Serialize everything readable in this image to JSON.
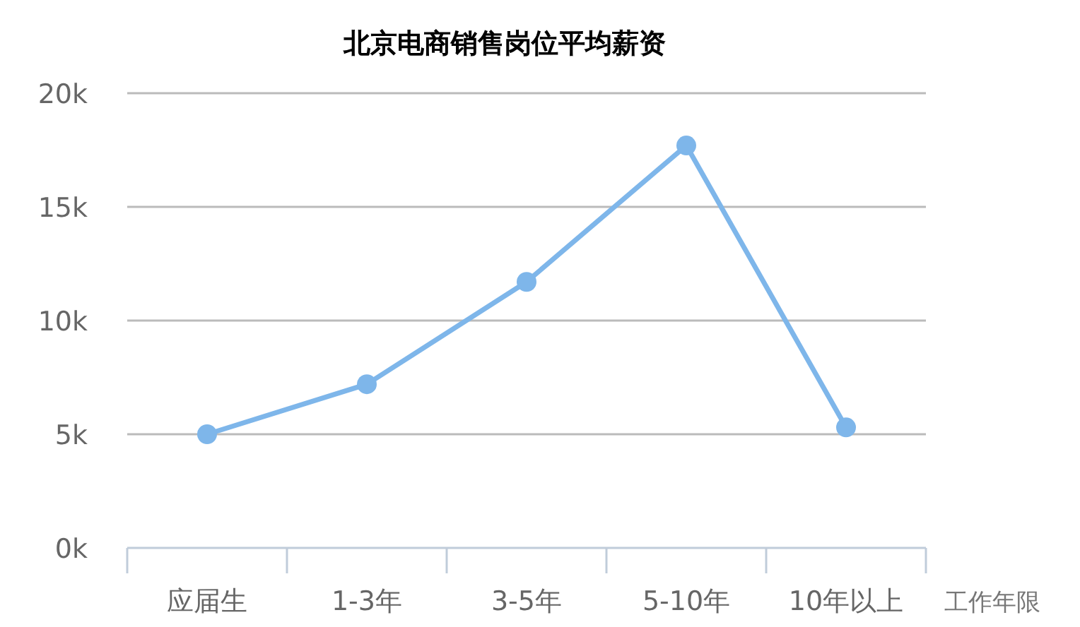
{
  "chart_data": {
    "type": "line",
    "title": "北京电商销售岗位平均薪资",
    "xlabel": "工作年限",
    "categories": [
      "应届生",
      "1-3年",
      "3-5年",
      "5-10年",
      "10年以上"
    ],
    "series": [
      {
        "color": "#7eb6ea",
        "values": [
          5000,
          7200,
          11700,
          17700,
          5300
        ]
      }
    ],
    "ylim": [
      0,
      20000
    ],
    "yticks": [
      {
        "value": 0,
        "label": "0k"
      },
      {
        "value": 5000,
        "label": "5k"
      },
      {
        "value": 10000,
        "label": "10k"
      },
      {
        "value": 15000,
        "label": "15k"
      },
      {
        "value": 20000,
        "label": "20k"
      }
    ],
    "grid": "y",
    "marker": "circle",
    "line_style": "solid"
  }
}
